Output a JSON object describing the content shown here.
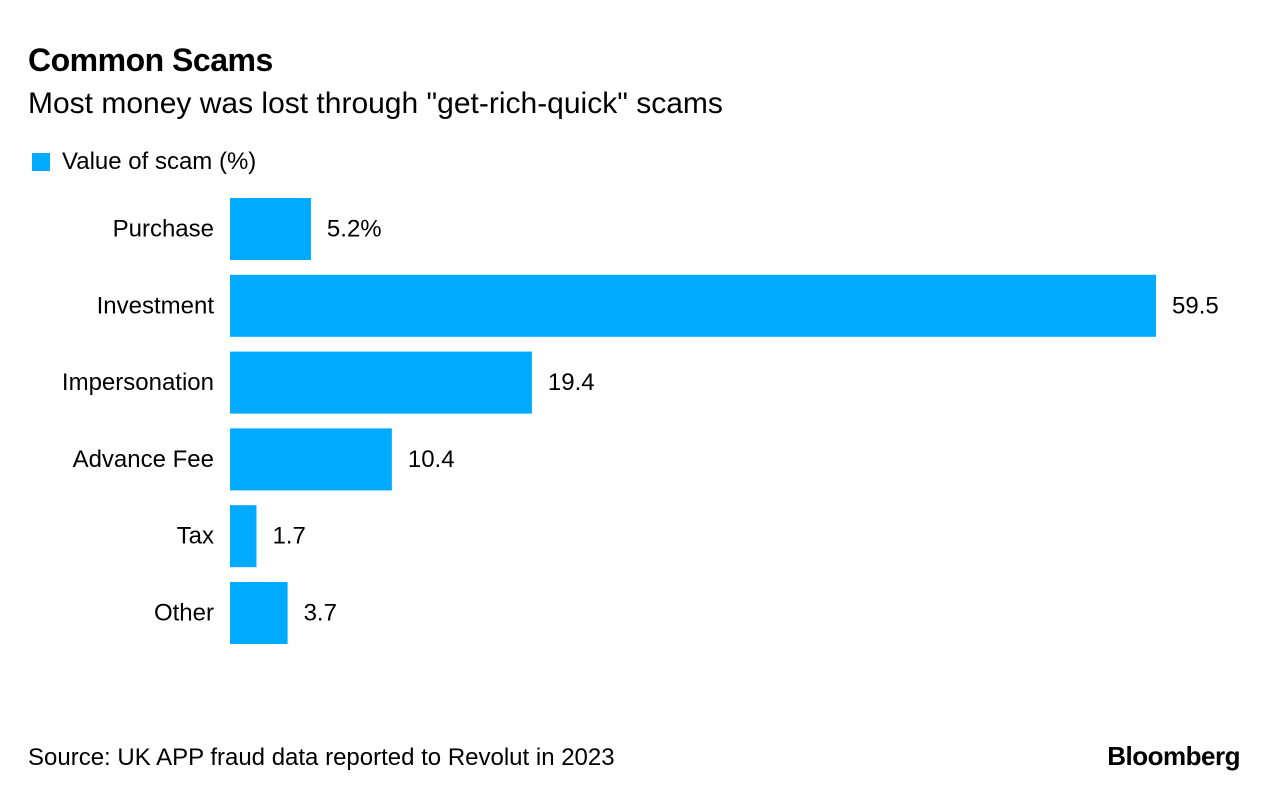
{
  "title": "Common Scams",
  "subtitle": "Most money was lost through \"get-rich-quick\" scams",
  "source": "Source: UK APP fraud data reported to Revolut in 2023",
  "brand": "Bloomberg",
  "colors": {
    "bar": "#00aaff",
    "text": "#000000",
    "background": "#ffffff"
  },
  "chart_data": {
    "type": "bar",
    "orientation": "horizontal",
    "categories": [
      "Purchase",
      "Investment",
      "Impersonation",
      "Advance Fee",
      "Tax",
      "Other"
    ],
    "series": [
      {
        "name": "Value of scam (%)",
        "values": [
          5.2,
          59.5,
          19.4,
          10.4,
          1.7,
          3.7
        ]
      }
    ],
    "data_labels": [
      "5.2%",
      "59.5",
      "19.4",
      "10.4",
      "1.7",
      "3.7"
    ],
    "xlim": [
      0,
      59.5
    ],
    "grid": false,
    "legend": "top-left"
  }
}
